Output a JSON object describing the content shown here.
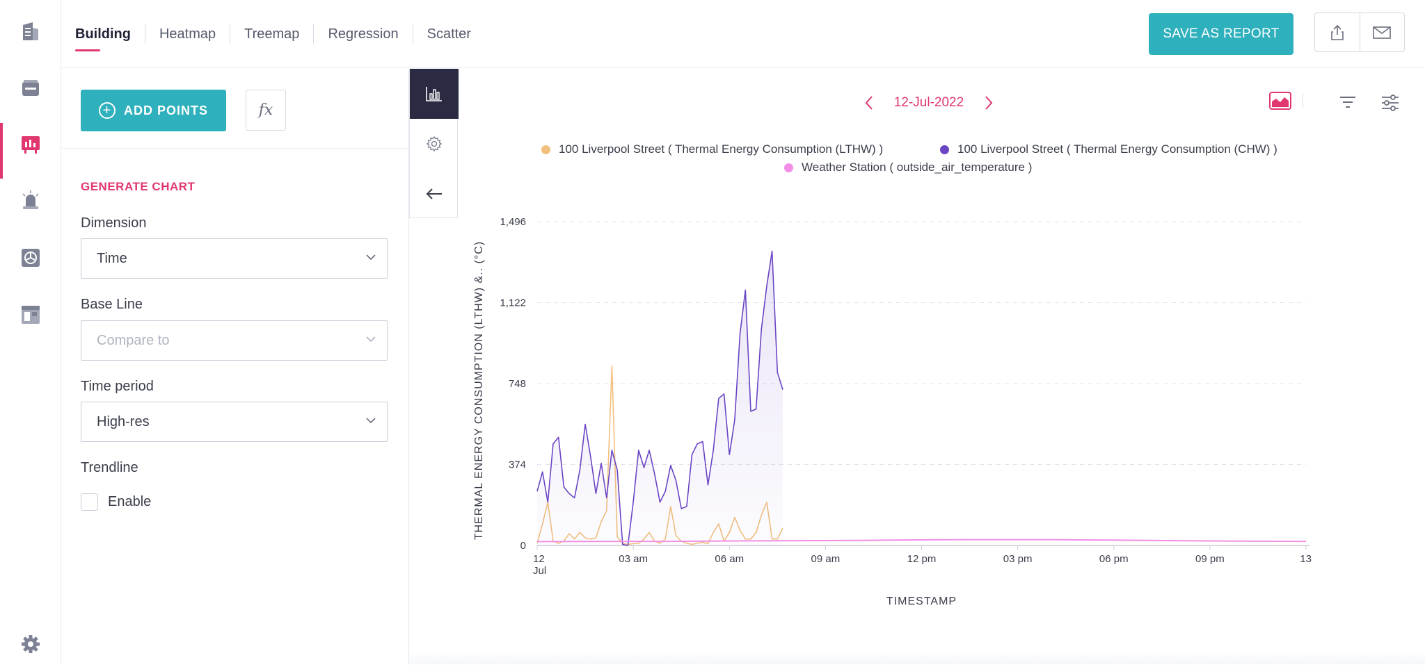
{
  "rail": {
    "items": [
      {
        "icon": "building-icon",
        "active": false
      },
      {
        "icon": "inbox-icon",
        "active": false
      },
      {
        "icon": "analytics-board-icon",
        "active": true
      },
      {
        "icon": "alarm-icon",
        "active": false
      },
      {
        "icon": "hvac-fan-icon",
        "active": false
      },
      {
        "icon": "dashboard-window-icon",
        "active": false
      }
    ],
    "settings_icon": "gear-icon"
  },
  "tabs": [
    "Building",
    "Heatmap",
    "Treemap",
    "Regression",
    "Scatter"
  ],
  "header": {
    "save_label": "SAVE AS REPORT",
    "share_icon": "share-icon",
    "mail_icon": "mail-icon"
  },
  "panel": {
    "add_points_label": "ADD POINTS",
    "fx_label": "fx",
    "section_title": "GENERATE CHART",
    "dimension": {
      "label": "Dimension",
      "value": "Time"
    },
    "baseline": {
      "label": "Base Line",
      "placeholder": "Compare to"
    },
    "time_period": {
      "label": "Time period",
      "value": "High-res"
    },
    "trendline": {
      "label": "Trendline",
      "checkbox_label": "Enable",
      "checked": false
    }
  },
  "date_nav": {
    "date": "12-Jul-2022"
  },
  "colors": {
    "accent": "#e0376f",
    "teal": "#2fb0bd",
    "lthw": "#f2c07c",
    "chw": "#6a45c4",
    "temp": "#f28ee6"
  },
  "chart_data": {
    "type": "line",
    "xlabel": "TIMESTAMP",
    "ylabel": "THERMAL ENERGY CONSUMPTION (LTHW) &.. (°C)",
    "ylim": [
      0,
      1496
    ],
    "yticks": [
      0,
      374,
      748,
      1122,
      1496
    ],
    "ytick_labels": [
      "0",
      "374",
      "748",
      "1,122",
      "1,496"
    ],
    "xlim_hours": [
      0,
      24
    ],
    "xticks": [
      {
        "h": 0,
        "label": "12",
        "sub": "Jul"
      },
      {
        "h": 3,
        "label": "03 am"
      },
      {
        "h": 6,
        "label": "06 am"
      },
      {
        "h": 9,
        "label": "09 am"
      },
      {
        "h": 12,
        "label": "12 pm"
      },
      {
        "h": 15,
        "label": "03 pm"
      },
      {
        "h": 18,
        "label": "06 pm"
      },
      {
        "h": 21,
        "label": "09 pm"
      },
      {
        "h": 24,
        "label": "13"
      }
    ],
    "grid": true,
    "legend_position": "top",
    "series": [
      {
        "name": "100 Liverpool Street ( Thermal Energy Consumption (LTHW) )",
        "color": "#f2c07c",
        "x": [
          0.0,
          0.167,
          0.333,
          0.5,
          0.667,
          0.833,
          1.0,
          1.167,
          1.333,
          1.5,
          1.667,
          1.833,
          2.0,
          2.167,
          2.333,
          2.5,
          2.667,
          2.833,
          3.0,
          3.167,
          3.333,
          3.5,
          3.667,
          3.833,
          4.0,
          4.167,
          4.333,
          4.5,
          4.667,
          4.833,
          5.0,
          5.167,
          5.333,
          5.5,
          5.667,
          5.833,
          6.0,
          6.167,
          6.333,
          6.5,
          6.667,
          6.833,
          7.0,
          7.167,
          7.333,
          7.5,
          7.667
        ],
        "y": [
          10,
          100,
          200,
          20,
          10,
          20,
          55,
          30,
          60,
          35,
          30,
          35,
          110,
          160,
          830,
          40,
          10,
          5,
          8,
          10,
          30,
          60,
          20,
          10,
          30,
          180,
          45,
          20,
          10,
          5,
          10,
          15,
          8,
          60,
          100,
          20,
          60,
          130,
          70,
          30,
          30,
          60,
          140,
          200,
          30,
          30,
          80
        ]
      },
      {
        "name": "100 Liverpool Street ( Thermal Energy Consumption (CHW) )",
        "color": "#6a45c4",
        "x": [
          0.0,
          0.167,
          0.333,
          0.5,
          0.667,
          0.833,
          1.0,
          1.167,
          1.333,
          1.5,
          1.667,
          1.833,
          2.0,
          2.167,
          2.333,
          2.5,
          2.667,
          2.833,
          3.0,
          3.167,
          3.333,
          3.5,
          3.667,
          3.833,
          4.0,
          4.167,
          4.333,
          4.5,
          4.667,
          4.833,
          5.0,
          5.167,
          5.333,
          5.5,
          5.667,
          5.833,
          6.0,
          6.167,
          6.333,
          6.5,
          6.667,
          6.833,
          7.0,
          7.167,
          7.333,
          7.5,
          7.667
        ],
        "y": [
          250,
          340,
          200,
          470,
          500,
          270,
          240,
          220,
          350,
          560,
          410,
          240,
          380,
          220,
          440,
          350,
          5,
          0,
          200,
          440,
          360,
          440,
          330,
          200,
          250,
          370,
          300,
          170,
          180,
          420,
          470,
          480,
          280,
          440,
          680,
          700,
          420,
          580,
          980,
          1180,
          620,
          630,
          1000,
          1200,
          1360,
          800,
          720
        ]
      },
      {
        "name": "Weather Station ( outside_air_temperature )",
        "color": "#f28ee6",
        "x": [
          0,
          2,
          4,
          6,
          8,
          10,
          12,
          14,
          16,
          18,
          20,
          22,
          24
        ],
        "y": [
          18,
          19,
          19,
          21,
          22,
          23,
          26,
          27,
          27,
          25,
          22,
          20,
          19
        ]
      }
    ]
  }
}
